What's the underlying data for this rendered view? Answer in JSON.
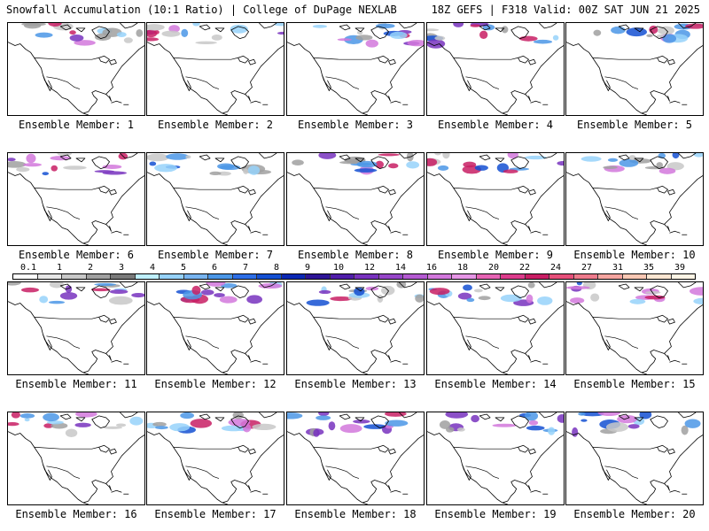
{
  "header": {
    "left_title": "Snowfall Accumulation (10:1 Ratio) | College of DuPage NEXLAB",
    "right_title": "18Z GEFS | F318 Valid: 00Z SAT JUN 21 2025"
  },
  "panels": [
    {
      "label": "Ensemble Member: 1"
    },
    {
      "label": "Ensemble Member: 2"
    },
    {
      "label": "Ensemble Member: 3"
    },
    {
      "label": "Ensemble Member: 4"
    },
    {
      "label": "Ensemble Member: 5"
    },
    {
      "label": "Ensemble Member: 6"
    },
    {
      "label": "Ensemble Member: 7"
    },
    {
      "label": "Ensemble Member: 8"
    },
    {
      "label": "Ensemble Member: 9"
    },
    {
      "label": "Ensemble Member: 10"
    },
    {
      "label": "Ensemble Member: 11"
    },
    {
      "label": "Ensemble Member: 12"
    },
    {
      "label": "Ensemble Member: 13"
    },
    {
      "label": "Ensemble Member: 14"
    },
    {
      "label": "Ensemble Member: 15"
    },
    {
      "label": "Ensemble Member: 16"
    },
    {
      "label": "Ensemble Member: 17"
    },
    {
      "label": "Ensemble Member: 18"
    },
    {
      "label": "Ensemble Member: 19"
    },
    {
      "label": "Ensemble Member: 20"
    }
  ],
  "colorbar": {
    "tick_labels": [
      "0.1",
      "1",
      "2",
      "3",
      "4",
      "5",
      "6",
      "7",
      "8",
      "9",
      "10",
      "12",
      "14",
      "16",
      "18",
      "20",
      "22",
      "24",
      "27",
      "31",
      "35",
      "39"
    ],
    "colors": [
      "#ffffff",
      "#e6e6e6",
      "#c8c8c8",
      "#a0a0a0",
      "#7a7a7a",
      "#bff0ff",
      "#96d2fa",
      "#78b4f0",
      "#4b96e6",
      "#2d6ee6",
      "#1450d2",
      "#0a28b4",
      "#2d1496",
      "#501eaa",
      "#7832be",
      "#9646c8",
      "#b45ad2",
      "#d278dc",
      "#e696e6",
      "#e664b4",
      "#dc3c8c",
      "#c81e64",
      "#e6507a",
      "#ee7b8c",
      "#f5a5a0",
      "#fac8b4",
      "#fde6d2",
      "#fff5e6"
    ]
  }
}
